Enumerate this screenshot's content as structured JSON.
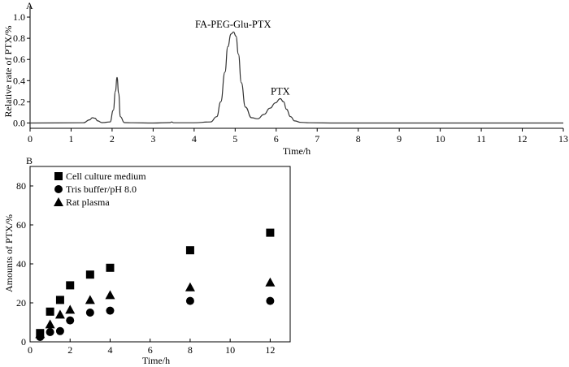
{
  "chart_data": [
    {
      "panel_label": "A",
      "type": "line",
      "xlabel": "Time/h",
      "ylabel": "Relative rate of PTX/%",
      "xlim": [
        0,
        13
      ],
      "ylim": [
        -0.05,
        1.1
      ],
      "x_ticks": [
        "0",
        "1",
        "2",
        "3",
        "4",
        "5",
        "6",
        "7",
        "8",
        "9",
        "10",
        "11",
        "12",
        "13"
      ],
      "y_ticks": [
        "0.0",
        "0.2",
        "0.4",
        "0.6",
        "0.8",
        "1.0"
      ],
      "annotations": [
        {
          "text": "FA-PEG-Glu-PTX",
          "x": 4.95,
          "y": 0.9
        },
        {
          "text": "PTX",
          "x": 6.1,
          "y": 0.27
        }
      ],
      "series": [
        {
          "x": [
            0,
            1.3,
            1.45,
            1.52,
            1.58,
            1.65,
            1.75,
            1.95,
            2.03,
            2.08,
            2.12,
            2.16,
            2.2,
            2.3,
            2.5,
            3.0,
            3.42,
            3.45,
            3.5,
            4.0,
            4.4,
            4.55,
            4.65,
            4.75,
            4.82,
            4.9,
            4.96,
            5.02,
            5.08,
            5.15,
            5.25,
            5.4,
            5.55,
            5.7,
            5.85,
            5.98,
            6.1,
            6.18,
            6.25,
            6.35,
            6.45,
            6.6,
            6.8,
            7.5,
            9,
            11,
            13
          ],
          "y": [
            0,
            0.002,
            0.03,
            0.05,
            0.045,
            0.02,
            0.004,
            0.01,
            0.12,
            0.3,
            0.43,
            0.28,
            0.06,
            0.004,
            0.002,
            0,
            0.004,
            0.01,
            0.002,
            0.002,
            0.01,
            0.06,
            0.2,
            0.48,
            0.72,
            0.84,
            0.86,
            0.82,
            0.65,
            0.38,
            0.15,
            0.05,
            0.04,
            0.08,
            0.14,
            0.19,
            0.23,
            0.2,
            0.13,
            0.06,
            0.02,
            0.006,
            0.002,
            0,
            0,
            0,
            0
          ]
        }
      ]
    },
    {
      "panel_label": "B",
      "type": "scatter",
      "xlabel": "Time/h",
      "ylabel": "Amounts of PTX/%",
      "xlim": [
        0,
        13
      ],
      "ylim": [
        0,
        90
      ],
      "x_ticks": [
        "0",
        "2",
        "4",
        "6",
        "8",
        "10",
        "12"
      ],
      "y_ticks": [
        "0",
        "20",
        "40",
        "60",
        "80"
      ],
      "legend_position": "top-left",
      "series": [
        {
          "name": "Cell culture medium",
          "marker": "square",
          "x": [
            0.5,
            1,
            1.5,
            2,
            3,
            4,
            8,
            12
          ],
          "y": [
            4.5,
            15.5,
            21.5,
            29,
            34.5,
            38,
            47,
            56
          ]
        },
        {
          "name": "Tris buffer/pH 8.0",
          "marker": "circle",
          "x": [
            0.5,
            1,
            1.5,
            2,
            3,
            4,
            8,
            12
          ],
          "y": [
            2.5,
            5,
            5.5,
            11,
            15,
            16,
            21,
            21
          ]
        },
        {
          "name": "Rat plasma",
          "marker": "triangle",
          "x": [
            0.5,
            1,
            1.5,
            2,
            3,
            4,
            8,
            12
          ],
          "y": [
            4,
            9,
            14,
            16.5,
            21.5,
            24,
            28,
            30.5
          ]
        }
      ]
    }
  ]
}
